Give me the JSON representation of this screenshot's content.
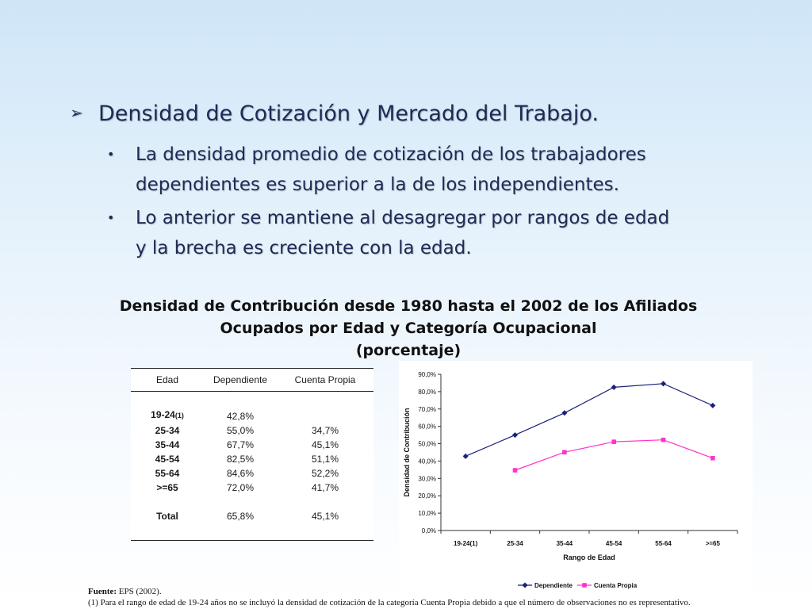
{
  "heading": {
    "arrow": "➢",
    "text": "Densidad de Cotización y Mercado del Trabajo."
  },
  "bullets": [
    {
      "mark": "•",
      "line1": "La densidad promedio de cotización de los trabajadores",
      "line2": "dependientes es superior a la de los independientes."
    },
    {
      "mark": "•",
      "line1": "Lo anterior se mantiene al desagregar por rangos de edad",
      "line2": "y la brecha es creciente con la edad."
    }
  ],
  "figure_title": {
    "line1": "Densidad de Contribución desde 1980 hasta el 2002 de los Afiliados",
    "line2": "Ocupados por Edad y Categoría Ocupacional",
    "line3": "(porcentaje)"
  },
  "table": {
    "headers": [
      "Edad",
      "Dependiente",
      "Cuenta Propia"
    ],
    "rows": [
      {
        "edad": "19-24",
        "note": "(1)",
        "dep": "42,8%",
        "cp": ""
      },
      {
        "edad": "25-34",
        "note": "",
        "dep": "55,0%",
        "cp": "34,7%"
      },
      {
        "edad": "35-44",
        "note": "",
        "dep": "67,7%",
        "cp": "45,1%"
      },
      {
        "edad": "45-54",
        "note": "",
        "dep": "82,5%",
        "cp": "51,1%"
      },
      {
        "edad": "55-64",
        "note": "",
        "dep": "84,6%",
        "cp": "52,2%"
      },
      {
        "edad": ">=65",
        "note": "",
        "dep": "72,0%",
        "cp": "41,7%"
      }
    ],
    "total": {
      "edad": "Total",
      "dep": "65,8%",
      "cp": "45,1%"
    }
  },
  "chart_data": {
    "type": "line",
    "categories": [
      "19-24(1)",
      "25-34",
      "35-44",
      "45-54",
      "55-64",
      ">=65"
    ],
    "series": [
      {
        "name": "Dependiente",
        "values": [
          42.8,
          55.0,
          67.7,
          82.5,
          84.6,
          72.0
        ],
        "color": "#1a1f7a",
        "marker": "diamond"
      },
      {
        "name": "Cuenta Propia",
        "values": [
          null,
          34.7,
          45.1,
          51.1,
          52.2,
          41.7
        ],
        "color": "#ff33cc",
        "marker": "square"
      }
    ],
    "xlabel": "Rango de Edad",
    "ylabel": "Densidad de Contribución",
    "ylim": [
      0,
      90
    ],
    "yticks": [
      "0,0%",
      "10,0%",
      "20,0%",
      "30,0%",
      "40,0%",
      "50,0%",
      "60,0%",
      "70,0%",
      "80,0%",
      "90,0%"
    ],
    "grid": false,
    "legend": "bottom"
  },
  "footer": {
    "source_label": "Fuente:",
    "source_text": " EPS (2002).",
    "note": "(1) Para el rango de edad de 19-24 años no se incluyó la densidad de cotización de la categoría Cuenta Propia  debido a que el número de observaciones no es representativo."
  }
}
